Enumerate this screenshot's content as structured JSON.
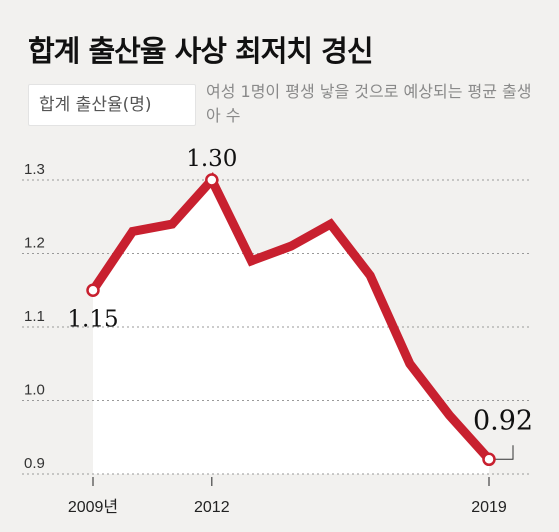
{
  "title": "합계 출산율 사상 최저치 경신",
  "unit_label": "합계 출산율(명)",
  "unit_note": "여성 1명이 평생 낳을 것으로 예상되는 평균 출생아 수",
  "colors": {
    "line": "#c8202f",
    "grid": "#9a9a9a",
    "background": "#f2f1ef",
    "area": "#ffffff"
  },
  "chart_data": {
    "type": "line",
    "title": "합계 출산율 사상 최저치 경신",
    "ylabel": "합계 출산율(명)",
    "x": [
      2009,
      2010,
      2011,
      2012,
      2013,
      2014,
      2015,
      2016,
      2017,
      2018,
      2019
    ],
    "y": [
      1.15,
      1.23,
      1.24,
      1.3,
      1.19,
      1.21,
      1.24,
      1.17,
      1.05,
      0.98,
      0.92
    ],
    "ylim": [
      0.9,
      1.3
    ],
    "yticks": [
      {
        "value": 0.9,
        "label": "0.9"
      },
      {
        "value": 1.0,
        "label": "1.0"
      },
      {
        "value": 1.1,
        "label": "1.1"
      },
      {
        "value": 1.2,
        "label": "1.2"
      },
      {
        "value": 1.3,
        "label": "1.3"
      }
    ],
    "xticks": [
      {
        "value": 2009,
        "label": "2009년"
      },
      {
        "value": 2012,
        "label": "2012"
      },
      {
        "value": 2019,
        "label": "2019"
      }
    ],
    "annotations": [
      {
        "x": 2009,
        "y": 1.15,
        "label": "1.15"
      },
      {
        "x": 2012,
        "y": 1.3,
        "label": "1.30"
      },
      {
        "x": 2019,
        "y": 0.92,
        "label": "0.92"
      }
    ],
    "grid": true,
    "legend": "none"
  }
}
